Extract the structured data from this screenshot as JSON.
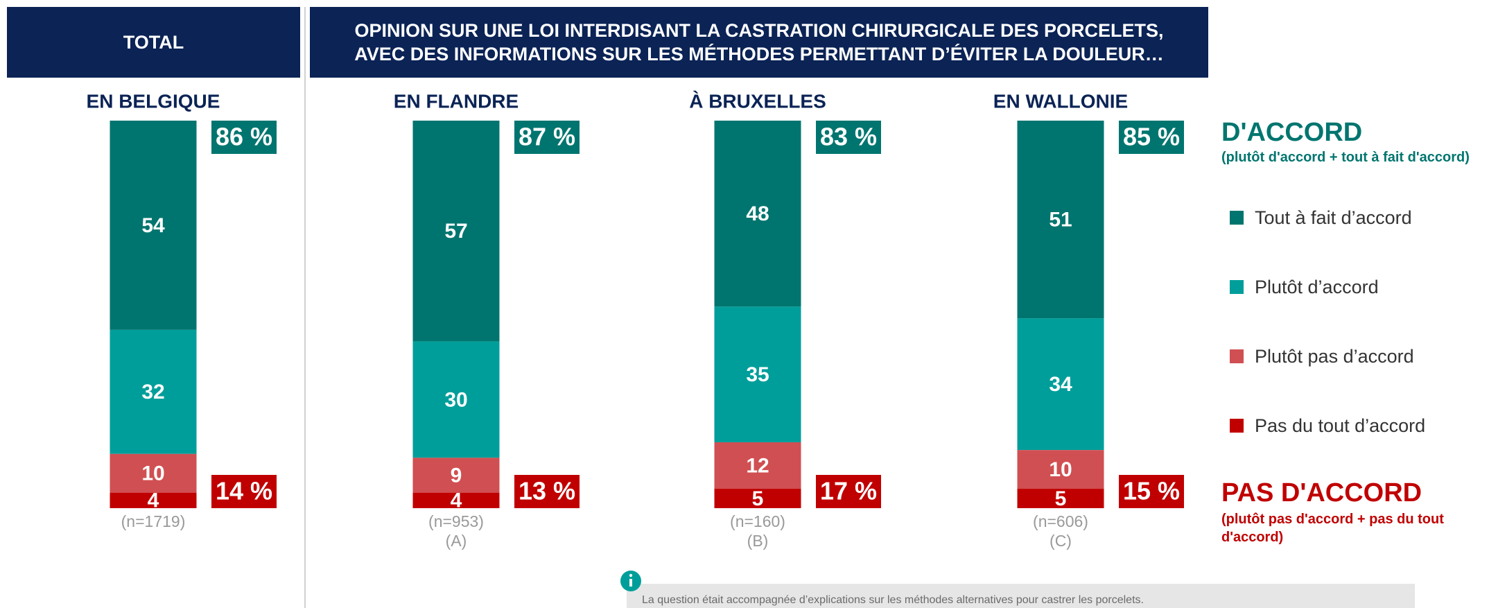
{
  "chart_data": {
    "type": "stacked_bar",
    "header_left": "TOTAL",
    "title": "OPINION SUR UNE LOI INTERDISANT LA CASTRATION CHIRURGICALE DES PORCELETS, AVEC DES INFORMATIONS SUR LES MÉTHODES PERMETTANT D’ÉVITER LA DOULEUR…",
    "categories": [
      "EN BELGIQUE",
      "EN FLANDRE",
      "À BRUXELLES",
      "EN WALLONIE"
    ],
    "sample_sizes": [
      "(n=1719)",
      "(n=953)",
      "(n=160)",
      "(n=606)"
    ],
    "group_labels": [
      null,
      "(A)",
      "(B)",
      "(C)"
    ],
    "ylim": [
      0,
      100
    ],
    "series": [
      {
        "name": "Tout à fait d’accord",
        "color": "#00756f",
        "values": [
          54,
          57,
          48,
          51
        ]
      },
      {
        "name": "Plutôt d’accord",
        "color": "#009e9a",
        "values": [
          32,
          30,
          35,
          34
        ]
      },
      {
        "name": "Plutôt pas d’accord",
        "color": "#d04f52",
        "values": [
          10,
          9,
          12,
          10
        ]
      },
      {
        "name": "Pas du tout d’accord",
        "color": "#c00000",
        "values": [
          4,
          4,
          5,
          5
        ]
      }
    ],
    "agree": {
      "title": "D'ACCORD",
      "subtitle": "(plutôt d'accord + tout à fait d'accord)",
      "color": "#00756f",
      "values": [
        86,
        87,
        83,
        85
      ],
      "value_labels": [
        "86 %",
        "87 %",
        "83 %",
        "85 %"
      ]
    },
    "disagree": {
      "title": "PAS D'ACCORD",
      "subtitle": "(plutôt pas d'accord + pas du tout d'accord)",
      "color": "#c00000",
      "values": [
        14,
        13,
        17,
        15
      ],
      "value_labels": [
        "14 %",
        "13 %",
        "17 %",
        "15 %"
      ]
    },
    "note": "La question était accompagnée d’explications sur les méthodes alternatives pour castrer les porcelets."
  }
}
